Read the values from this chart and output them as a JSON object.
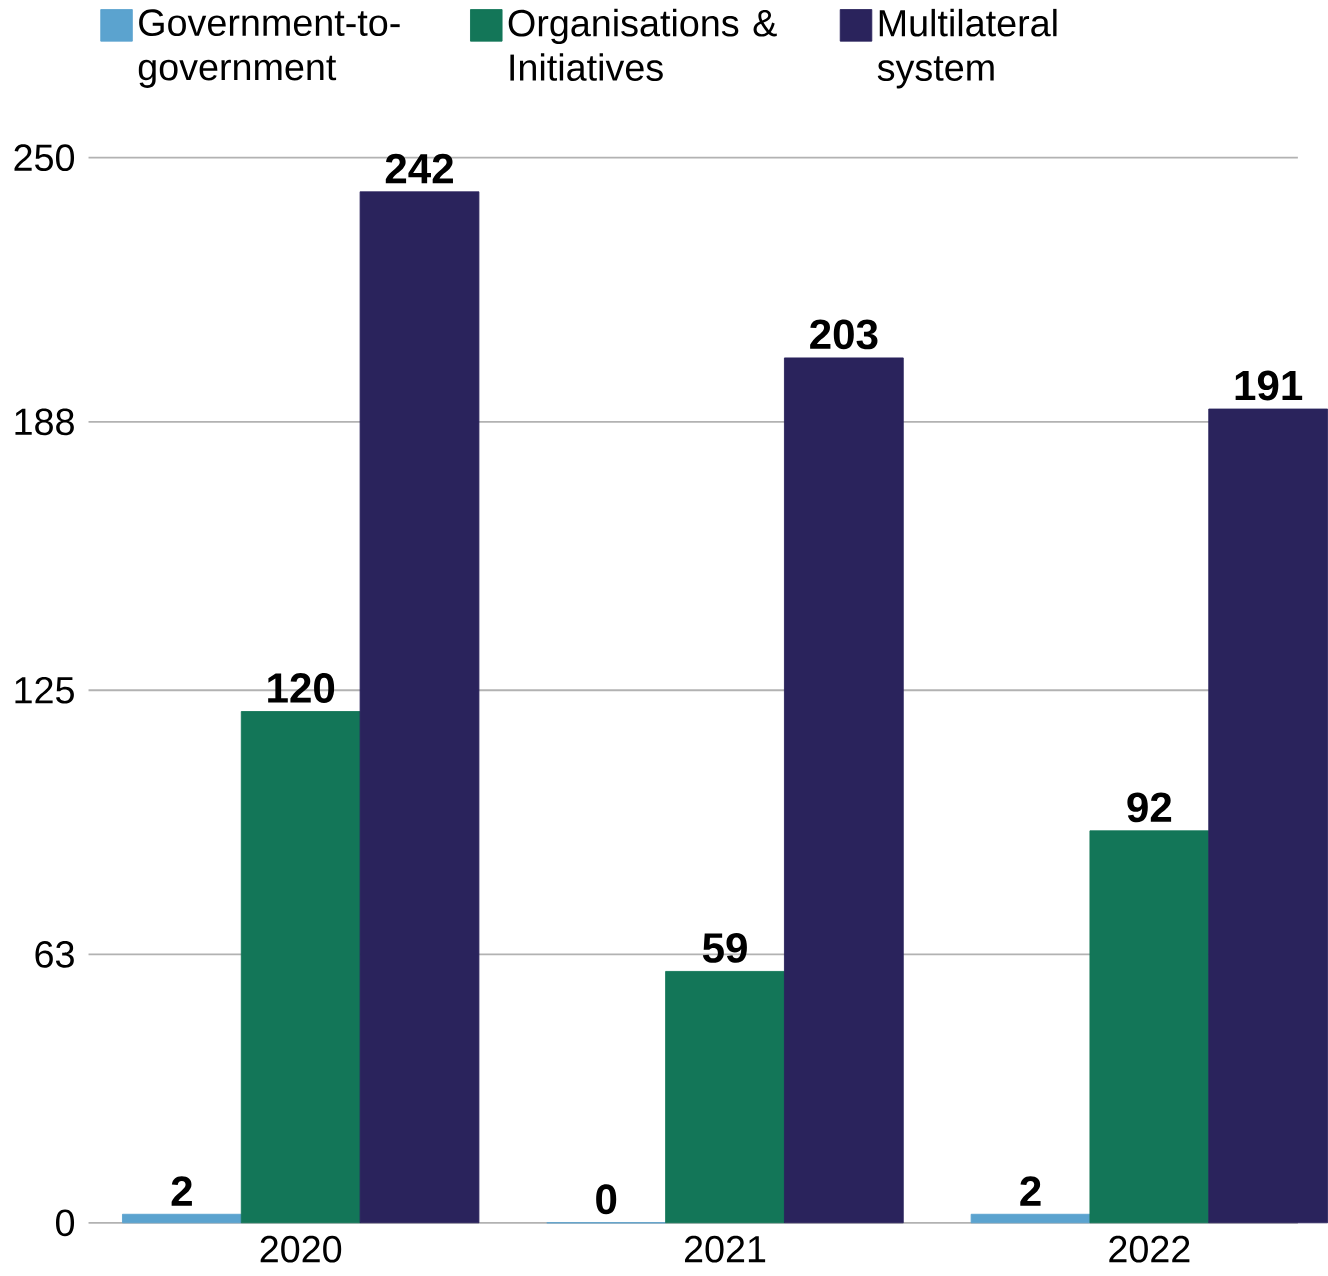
{
  "chart_data": {
    "type": "bar",
    "categories": [
      "2020",
      "2021",
      "2022"
    ],
    "series": [
      {
        "name": "Government-to-government",
        "color": "#5ba3cf",
        "values": [
          2,
          0,
          2
        ]
      },
      {
        "name": "Organisations & Initiatives",
        "color": "#137658",
        "values": [
          120,
          59,
          92
        ]
      },
      {
        "name": "Multilateral system",
        "color": "#2a235c",
        "values": [
          242,
          203,
          191
        ]
      }
    ],
    "ylim": [
      0,
      250
    ],
    "yticks": [
      0,
      63,
      125,
      188,
      250
    ],
    "grid": "y",
    "legend": "top",
    "data_labels": true
  }
}
